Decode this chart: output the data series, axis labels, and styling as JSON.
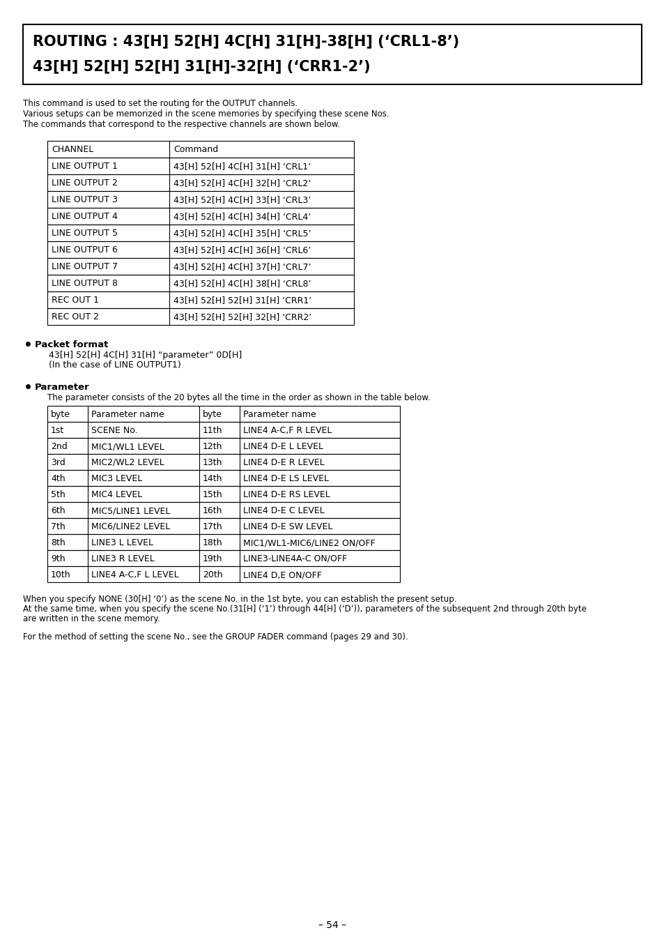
{
  "title_line1": "ROUTING : 43[H] 52[H] 4C[H] 31[H]-38[H] (‘CRL1-8’)",
  "title_line2": "43[H] 52[H] 52[H] 31[H]-32[H] (‘CRR1-2’)",
  "intro_lines": [
    "This command is used to set the routing for the OUTPUT channels.",
    "Various setups can be memorized in the scene memories by specifying these scene Nos.",
    "The commands that correspond to the respective channels are shown below."
  ],
  "table1_headers": [
    "CHANNEL",
    "Command"
  ],
  "table1_rows": [
    [
      "LINE OUTPUT 1",
      "43[H] 52[H] 4C[H] 31[H] ‘CRL1’"
    ],
    [
      "LINE OUTPUT 2",
      "43[H] 52[H] 4C[H] 32[H] ‘CRL2’"
    ],
    [
      "LINE OUTPUT 3",
      "43[H] 52[H] 4C[H] 33[H] ‘CRL3’"
    ],
    [
      "LINE OUTPUT 4",
      "43[H] 52[H] 4C[H] 34[H] ‘CRL4’"
    ],
    [
      "LINE OUTPUT 5",
      "43[H] 52[H] 4C[H] 35[H] ‘CRL5’"
    ],
    [
      "LINE OUTPUT 6",
      "43[H] 52[H] 4C[H] 36[H] ‘CRL6’"
    ],
    [
      "LINE OUTPUT 7",
      "43[H] 52[H] 4C[H] 37[H] ‘CRL7’"
    ],
    [
      "LINE OUTPUT 8",
      "43[H] 52[H] 4C[H] 38[H] ‘CRL8’"
    ],
    [
      "REC OUT 1",
      "43[H] 52[H] 52[H] 31[H] ‘CRR1’"
    ],
    [
      "REC OUT 2",
      "43[H] 52[H] 52[H] 32[H] ‘CRR2’"
    ]
  ],
  "bullet1_label": "Packet format",
  "bullet1_lines": [
    "43[H] 52[H] 4C[H] 31[H] “parameter” 0D[H]",
    "(In the case of LINE OUTPUT1)"
  ],
  "bullet2_label": "Parameter",
  "bullet2_intro": "The parameter consists of the 20 bytes all the time in the order as shown in the table below.",
  "table2_headers": [
    "byte",
    "Parameter name",
    "byte",
    "Parameter name"
  ],
  "table2_rows": [
    [
      "1st",
      "SCENE No.",
      "11th",
      "LINE4 A-C,F R LEVEL"
    ],
    [
      "2nd",
      "MIC1/WL1 LEVEL",
      "12th",
      "LINE4 D-E L LEVEL"
    ],
    [
      "3rd",
      "MIC2/WL2 LEVEL",
      "13th",
      "LINE4 D-E R LEVEL"
    ],
    [
      "4th",
      "MIC3 LEVEL",
      "14th",
      "LINE4 D-E LS LEVEL"
    ],
    [
      "5th",
      "MIC4 LEVEL",
      "15th",
      "LINE4 D-E RS LEVEL"
    ],
    [
      "6th",
      "MIC5/LINE1 LEVEL",
      "16th",
      "LINE4 D-E C LEVEL"
    ],
    [
      "7th",
      "MIC6/LINE2 LEVEL",
      "17th",
      "LINE4 D-E SW LEVEL"
    ],
    [
      "8th",
      "LINE3 L LEVEL",
      "18th",
      "MIC1/WL1-MIC6/LINE2 ON/OFF"
    ],
    [
      "9th",
      "LINE3 R LEVEL",
      "19th",
      "LINE3-LINE4A-C ON/OFF"
    ],
    [
      "10th",
      "LINE4 A-C,F L LEVEL",
      "20th",
      "LINE4 D,E ON/OFF"
    ]
  ],
  "footer_lines": [
    "When you specify NONE (30[H] ‘0’) as the scene No. in the 1st byte, you can establish the present setup.",
    "At the same time, when you specify the scene No.(31[H] (‘1’) through 44[H] (‘D’)), parameters of the subsequent 2nd through 20th byte",
    "are written in the scene memory."
  ],
  "footer2_line": "For the method of setting the scene No., see the GROUP FADER command (pages 29 and 30).",
  "page_number": "– 54 –",
  "bg_color": "#ffffff",
  "text_color": "#000000"
}
